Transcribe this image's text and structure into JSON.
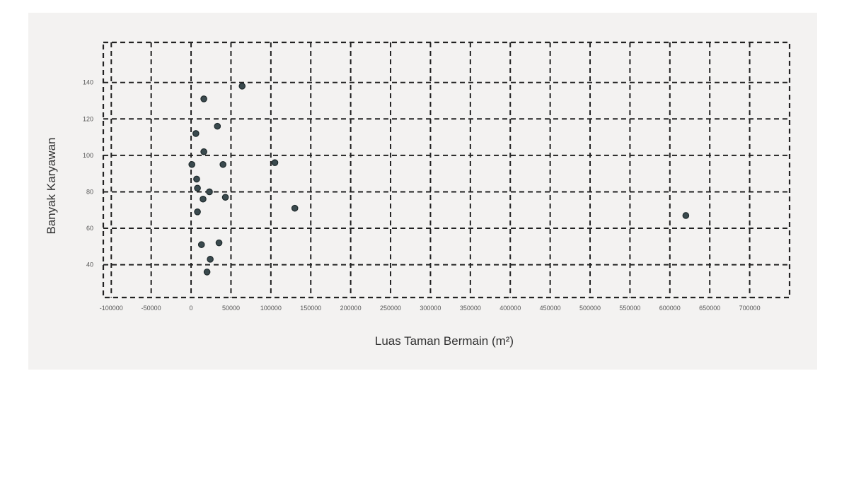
{
  "chart_data": {
    "type": "scatter",
    "xlabel": "Luas Taman Bermain (m²)",
    "ylabel": "Banyak Karyawan",
    "xlim": [
      -110000,
      750000
    ],
    "ylim": [
      22,
      162
    ],
    "x_ticks": [
      -100000,
      -50000,
      0,
      50000,
      100000,
      150000,
      200000,
      250000,
      300000,
      350000,
      400000,
      450000,
      500000,
      550000,
      600000,
      650000,
      700000
    ],
    "x_tick_labels": [
      "-100000",
      "-50000",
      "0",
      "50000",
      "100000",
      "150000",
      "200000",
      "250000",
      "300000",
      "350000",
      "400000",
      "450000",
      "500000",
      "550000",
      "600000",
      "650000",
      "700000"
    ],
    "y_ticks": [
      40,
      60,
      80,
      100,
      120,
      140
    ],
    "y_tick_labels": [
      "40",
      "60",
      "80",
      "100",
      "120",
      "140"
    ],
    "grid": true,
    "grid_style": "dashed",
    "marker_color": "#3a4a4e",
    "grid_color": "#222222",
    "points": [
      {
        "x": 16000,
        "y": 131
      },
      {
        "x": 64000,
        "y": 138
      },
      {
        "x": 33000,
        "y": 116
      },
      {
        "x": 6000,
        "y": 112
      },
      {
        "x": 16000,
        "y": 102
      },
      {
        "x": 1000,
        "y": 95
      },
      {
        "x": 40000,
        "y": 95
      },
      {
        "x": 105000,
        "y": 96
      },
      {
        "x": 7000,
        "y": 87
      },
      {
        "x": 8000,
        "y": 82
      },
      {
        "x": 23000,
        "y": 80
      },
      {
        "x": 15000,
        "y": 76
      },
      {
        "x": 43000,
        "y": 77
      },
      {
        "x": 8000,
        "y": 69
      },
      {
        "x": 130000,
        "y": 71
      },
      {
        "x": 620000,
        "y": 67
      },
      {
        "x": 13000,
        "y": 51
      },
      {
        "x": 35000,
        "y": 52
      },
      {
        "x": 24000,
        "y": 43
      },
      {
        "x": 20000,
        "y": 36
      }
    ]
  }
}
